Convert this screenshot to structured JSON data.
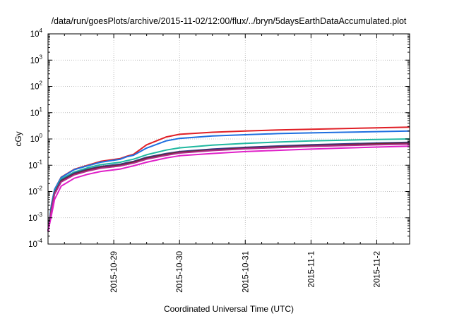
{
  "chart_data": {
    "type": "line",
    "title": "/data/run/goesPlots/archive/2015-11-02/12:00/flux/../bryn/5daysEarthDataAccumulated.plot",
    "xlabel": "Coordinated Universal Time (UTC)",
    "ylabel": "cGy",
    "y_scale": "log",
    "ylim": [
      0.0001,
      10000
    ],
    "xlim": [
      "2015-10-28T00:00",
      "2015-11-02T12:00"
    ],
    "y_ticks": [
      {
        "base": "10",
        "exp": "-4"
      },
      {
        "base": "10",
        "exp": "-3"
      },
      {
        "base": "10",
        "exp": "-2"
      },
      {
        "base": "10",
        "exp": "-1"
      },
      {
        "base": "10",
        "exp": "0"
      },
      {
        "base": "10",
        "exp": "1"
      },
      {
        "base": "10",
        "exp": "2"
      },
      {
        "base": "10",
        "exp": "3"
      },
      {
        "base": "10",
        "exp": "4"
      }
    ],
    "x_ticks": [
      "2015-10-29",
      "2015-10-30",
      "2015-10-31",
      "2015-11-1",
      "2015-11-2"
    ],
    "grid": true,
    "legend": "none",
    "series": [
      {
        "color": "#e01f26",
        "x": [
          "2015-10-28T00:00",
          "2015-10-28T01:12",
          "2015-10-28T02:24",
          "2015-10-28T04:48",
          "2015-10-28T09:36",
          "2015-10-28T14:24",
          "2015-10-28T19:12",
          "2015-10-29T02:24",
          "2015-10-29T04:48",
          "2015-10-29T07:12",
          "2015-10-29T12:00",
          "2015-10-29T19:12",
          "2015-10-30T00:00",
          "2015-10-30T12:00",
          "2015-10-31T00:00",
          "2015-10-31T12:00",
          "2015-11-01T00:00",
          "2015-11-01T12:00",
          "2015-11-02T00:00",
          "2015-11-02T12:00"
        ],
        "y": [
          0.0003,
          0.003,
          0.012,
          0.035,
          0.07,
          0.1,
          0.14,
          0.18,
          0.22,
          0.26,
          0.6,
          1.2,
          1.5,
          1.8,
          2.0,
          2.2,
          2.35,
          2.5,
          2.65,
          2.8
        ]
      },
      {
        "color": "#1f6fe0",
        "x": [
          "2015-10-28T00:00",
          "2015-10-28T01:12",
          "2015-10-28T02:24",
          "2015-10-28T04:48",
          "2015-10-28T09:36",
          "2015-10-28T14:24",
          "2015-10-28T19:12",
          "2015-10-29T02:24",
          "2015-10-29T04:48",
          "2015-10-29T07:12",
          "2015-10-29T12:00",
          "2015-10-29T19:12",
          "2015-10-30T00:00",
          "2015-10-30T12:00",
          "2015-10-31T00:00",
          "2015-10-31T12:00",
          "2015-11-01T00:00",
          "2015-11-01T12:00",
          "2015-11-02T00:00",
          "2015-11-02T12:00"
        ],
        "y": [
          0.0003,
          0.003,
          0.012,
          0.034,
          0.068,
          0.095,
          0.13,
          0.17,
          0.21,
          0.24,
          0.45,
          0.85,
          1.05,
          1.3,
          1.45,
          1.6,
          1.7,
          1.8,
          1.9,
          2.0
        ]
      },
      {
        "color": "#1fb8a0",
        "x": [
          "2015-10-28T00:00",
          "2015-10-28T01:12",
          "2015-10-28T02:24",
          "2015-10-28T04:48",
          "2015-10-28T09:36",
          "2015-10-28T14:24",
          "2015-10-28T19:12",
          "2015-10-29T02:24",
          "2015-10-29T04:48",
          "2015-10-29T07:12",
          "2015-10-29T12:00",
          "2015-10-29T19:12",
          "2015-10-30T00:00",
          "2015-10-30T12:00",
          "2015-10-31T00:00",
          "2015-10-31T12:00",
          "2015-11-01T00:00",
          "2015-11-01T12:00",
          "2015-11-02T00:00",
          "2015-11-02T12:00"
        ],
        "y": [
          0.0003,
          0.0025,
          0.01,
          0.03,
          0.055,
          0.08,
          0.105,
          0.13,
          0.15,
          0.17,
          0.25,
          0.38,
          0.46,
          0.58,
          0.68,
          0.76,
          0.84,
          0.9,
          0.96,
          1.0
        ]
      },
      {
        "color": "#3a3a8a",
        "x": [
          "2015-10-28T00:00",
          "2015-10-28T01:12",
          "2015-10-28T02:24",
          "2015-10-28T04:48",
          "2015-10-28T09:36",
          "2015-10-28T14:24",
          "2015-10-28T19:12",
          "2015-10-29T02:24",
          "2015-10-29T04:48",
          "2015-10-29T07:12",
          "2015-10-29T12:00",
          "2015-10-29T19:12",
          "2015-10-30T00:00",
          "2015-10-30T12:00",
          "2015-10-31T00:00",
          "2015-10-31T12:00",
          "2015-11-01T00:00",
          "2015-11-01T12:00",
          "2015-11-02T00:00",
          "2015-11-02T12:00"
        ],
        "y": [
          0.0003,
          0.0022,
          0.009,
          0.027,
          0.05,
          0.07,
          0.09,
          0.11,
          0.125,
          0.14,
          0.2,
          0.28,
          0.33,
          0.41,
          0.48,
          0.54,
          0.6,
          0.65,
          0.7,
          0.75
        ]
      },
      {
        "color": "#6a2a2a",
        "x": [
          "2015-10-28T00:00",
          "2015-10-28T01:12",
          "2015-10-28T02:24",
          "2015-10-28T04:48",
          "2015-10-28T09:36",
          "2015-10-28T14:24",
          "2015-10-28T19:12",
          "2015-10-29T02:24",
          "2015-10-29T04:48",
          "2015-10-29T07:12",
          "2015-10-29T12:00",
          "2015-10-29T19:12",
          "2015-10-30T00:00",
          "2015-10-30T12:00",
          "2015-10-31T00:00",
          "2015-10-31T12:00",
          "2015-11-01T00:00",
          "2015-11-01T12:00",
          "2015-11-02T00:00",
          "2015-11-02T12:00"
        ],
        "y": [
          0.0003,
          0.002,
          0.0085,
          0.025,
          0.046,
          0.065,
          0.083,
          0.1,
          0.115,
          0.13,
          0.185,
          0.26,
          0.31,
          0.38,
          0.44,
          0.5,
          0.55,
          0.6,
          0.65,
          0.69
        ]
      },
      {
        "color": "#b02a8a",
        "x": [
          "2015-10-28T00:00",
          "2015-10-28T01:12",
          "2015-10-28T02:24",
          "2015-10-28T04:48",
          "2015-10-28T09:36",
          "2015-10-28T14:24",
          "2015-10-28T19:12",
          "2015-10-29T02:24",
          "2015-10-29T04:48",
          "2015-10-29T07:12",
          "2015-10-29T12:00",
          "2015-10-29T19:12",
          "2015-10-30T00:00",
          "2015-10-30T12:00",
          "2015-10-31T00:00",
          "2015-10-31T12:00",
          "2015-11-01T00:00",
          "2015-11-01T12:00",
          "2015-11-02T00:00",
          "2015-11-02T12:00"
        ],
        "y": [
          0.0003,
          0.0019,
          0.008,
          0.023,
          0.043,
          0.06,
          0.077,
          0.094,
          0.107,
          0.12,
          0.17,
          0.24,
          0.29,
          0.36,
          0.42,
          0.47,
          0.52,
          0.56,
          0.6,
          0.64
        ]
      },
      {
        "color": "#e020c8",
        "x": [
          "2015-10-28T00:00",
          "2015-10-28T01:12",
          "2015-10-28T02:24",
          "2015-10-28T04:48",
          "2015-10-28T09:36",
          "2015-10-28T14:24",
          "2015-10-28T19:12",
          "2015-10-29T02:24",
          "2015-10-29T04:48",
          "2015-10-29T07:12",
          "2015-10-29T12:00",
          "2015-10-29T19:12",
          "2015-10-30T00:00",
          "2015-10-30T12:00",
          "2015-10-31T00:00",
          "2015-10-31T12:00",
          "2015-11-01T00:00",
          "2015-11-01T12:00",
          "2015-11-02T00:00",
          "2015-11-02T12:00"
        ],
        "y": [
          0.0003,
          0.0012,
          0.005,
          0.016,
          0.032,
          0.045,
          0.058,
          0.072,
          0.083,
          0.095,
          0.13,
          0.19,
          0.23,
          0.28,
          0.33,
          0.37,
          0.41,
          0.45,
          0.49,
          0.53
        ]
      }
    ]
  }
}
